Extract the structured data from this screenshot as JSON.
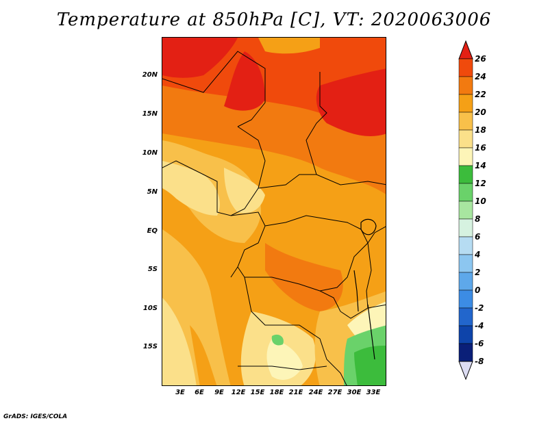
{
  "title": "Temperature at 850hPa [C], VT: 2020063006",
  "credit": "GrADS: IGES/COLA",
  "lat_labels": [
    "20N",
    "15N",
    "10N",
    "5N",
    "EQ",
    "5S",
    "10S",
    "15S"
  ],
  "lon_labels": [
    "3E",
    "6E",
    "9E",
    "12E",
    "15E",
    "18E",
    "21E",
    "24E",
    "27E",
    "30E",
    "33E"
  ],
  "colorbar": {
    "levels": [
      "26",
      "24",
      "22",
      "20",
      "18",
      "16",
      "14",
      "12",
      "10",
      "8",
      "6",
      "4",
      "2",
      "0",
      "-2",
      "-4",
      "-6",
      "-8"
    ],
    "colors": [
      "#e32014",
      "#f04a0c",
      "#f27a10",
      "#f5a016",
      "#f8c04a",
      "#fbe08a",
      "#fdf5b8",
      "#3cbc3c",
      "#6ad26a",
      "#a8e6a0",
      "#d6f2e0",
      "#b6dcf2",
      "#8cc6f0",
      "#5ea8ea",
      "#3c8ce4",
      "#2266cc",
      "#0e44aa",
      "#0a1f78",
      "#dcdcf2"
    ]
  }
}
